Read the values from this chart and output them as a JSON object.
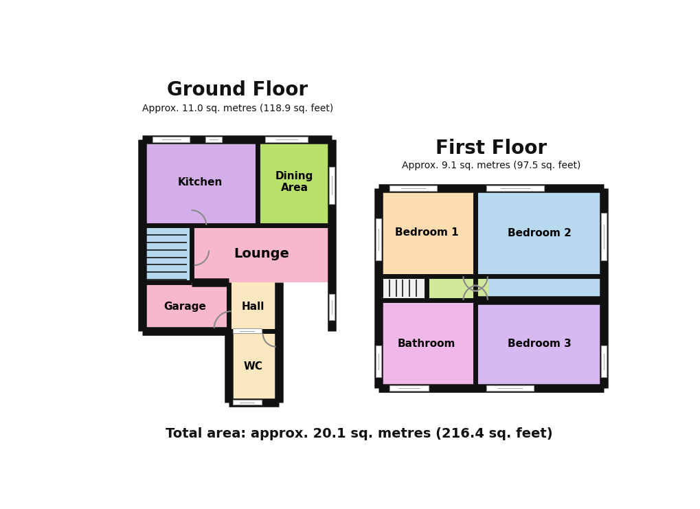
{
  "bg_color": "#ffffff",
  "wall_color": "#111111",
  "title_ground": "Ground Floor",
  "subtitle_ground": "Approx. 11.0 sq. metres (118.9 sq. feet)",
  "title_first": "First Floor",
  "subtitle_first": "Approx. 9.1 sq. metres (97.5 sq. feet)",
  "footer": "Total area: approx. 20.1 sq. metres (216.4 sq. feet)",
  "color_kitchen": "#d4aee8",
  "color_dining": "#b8e06a",
  "color_lounge": "#f8b8cc",
  "color_garage": "#f8b8cc",
  "color_hall": "#fce8c0",
  "color_wc": "#fce8c0",
  "color_stair_gnd": "#b8d8f0",
  "color_bed1": "#fddcb0",
  "color_bed2": "#b8d8f0",
  "color_bath": "#f0b8e8",
  "color_bed3": "#d8b8f0",
  "color_landing": "#d0e898",
  "color_stair_fst": "#f0f0f0"
}
